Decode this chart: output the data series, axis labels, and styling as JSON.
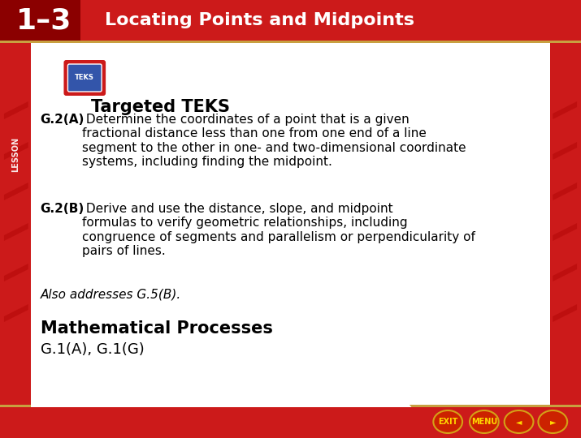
{
  "title_lesson": "1–3",
  "title_text": "Locating Points and Midpoints",
  "header_bg": "#cc1a1a",
  "header_dark": "#8b0000",
  "header_gold": "#c8a040",
  "body_bg": "#ffffff",
  "footer_bg": "#cc1a1a",
  "left_stripe_bg": "#cc1a1a",
  "targeted_teks_title": "Targeted TEKS",
  "g2a_bold": "G.2(A)",
  "g2a_text": " Determine the coordinates of a point that is a given\nfractional distance less than one from one end of a line\nsegment to the other in one- and two-dimensional coordinate\nsystems, including finding the midpoint.",
  "g2b_bold": "G.2(B)",
  "g2b_text": " Derive and use the distance, slope, and midpoint\nformulas to verify geometric relationships, including\ncongruence of segments and parallelism or perpendicularity of\npairs of lines.",
  "also_text": "Also addresses G.5(B).",
  "math_proc_title": "Mathematical Processes",
  "math_proc_text": "G.1(A), G.1(G)",
  "lesson_label": "LESSON",
  "figsize": [
    7.2,
    5.4
  ],
  "dpi": 100
}
